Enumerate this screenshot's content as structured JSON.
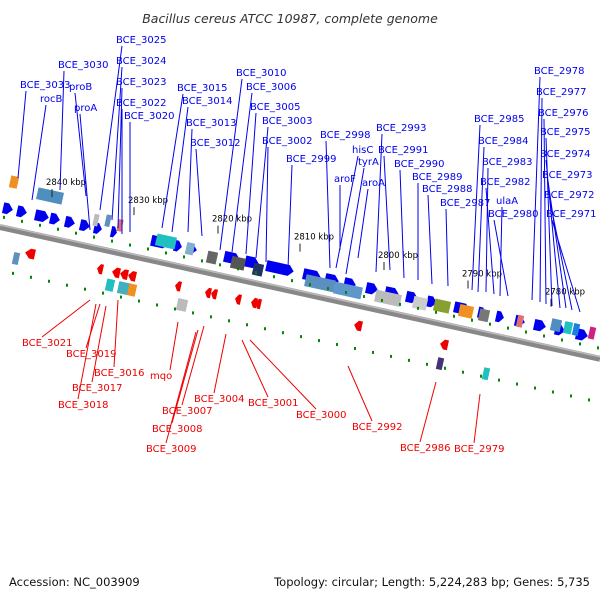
{
  "title": "Bacillus cereus ATCC 10987, complete genome",
  "footer": {
    "accession": "Accession: NC_003909",
    "summary": "Topology: circular; Length: 5,224,283 bp; Genes: 5,735"
  },
  "colors": {
    "forward": "#0000ee",
    "reverse": "#ee0000",
    "tick": "#008800",
    "backbone": "#888888"
  },
  "scale_ticks": [
    "2840 kbp",
    "2830 kbp",
    "2820 kbp",
    "2810 kbp",
    "2800 kbp",
    "2790 kbp",
    "2780 kbp"
  ],
  "forward_labels": [
    "BCE_3033",
    "rocB",
    "BCE_3030",
    "proB",
    "proA",
    "BCE_3025",
    "BCE_3024",
    "BCE_3023",
    "BCE_3022",
    "BCE_3020",
    "BCE_3015",
    "BCE_3014",
    "BCE_3013",
    "BCE_3012",
    "BCE_3010",
    "BCE_3006",
    "BCE_3005",
    "BCE_3003",
    "BCE_3002",
    "BCE_2999",
    "BCE_2998",
    "hisC",
    "tyrA",
    "aroF",
    "aroA",
    "BCE_2993",
    "BCE_2991",
    "BCE_2990",
    "BCE_2989",
    "BCE_2988",
    "BCE_2987",
    "BCE_2985",
    "BCE_2984",
    "BCE_2983",
    "BCE_2982",
    "ulaA",
    "BCE_2980",
    "BCE_2978",
    "BCE_2977",
    "BCE_2976",
    "BCE_2975",
    "BCE_2974",
    "BCE_2973",
    "BCE_2972",
    "BCE_2971"
  ],
  "reverse_labels": [
    "BCE_3021",
    "BCE_3019",
    "BCE_3016",
    "BCE_3017",
    "BCE_3018",
    "mqo",
    "BCE_3007",
    "BCE_3008",
    "BCE_3009",
    "BCE_3004",
    "BCE_3001",
    "BCE_3000",
    "BCE_2992",
    "BCE_2986",
    "BCE_2979"
  ]
}
